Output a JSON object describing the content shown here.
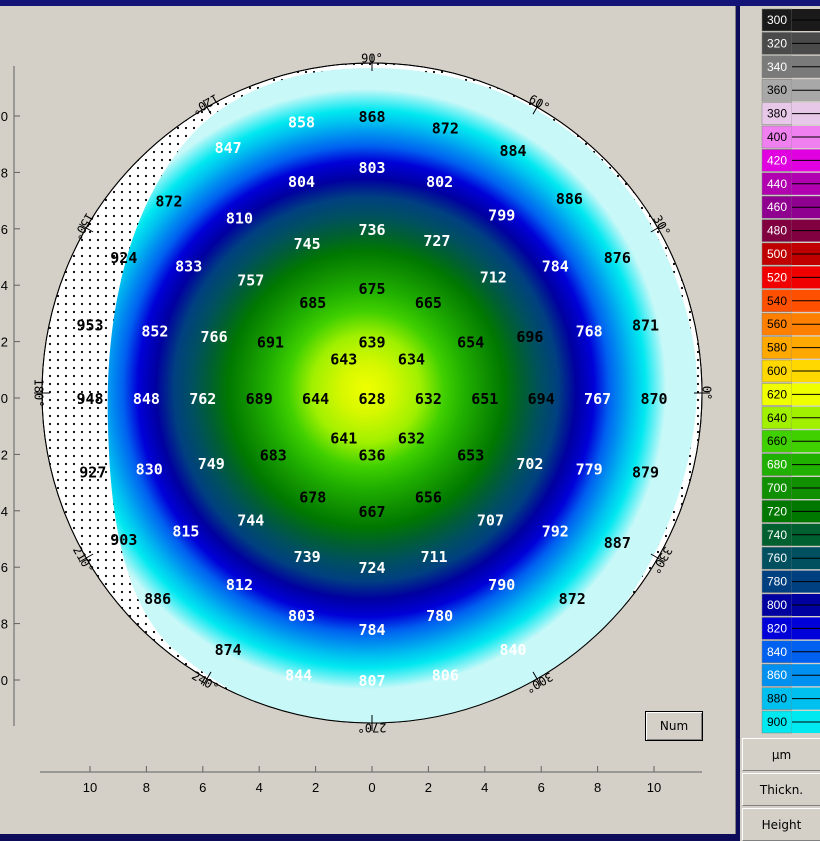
{
  "map": {
    "unit": "µm",
    "angle_labels": [
      {
        "deg": 0,
        "text": "0°"
      },
      {
        "deg": 30,
        "text": "30°"
      },
      {
        "deg": 60,
        "text": "60°"
      },
      {
        "deg": 90,
        "text": "90°"
      },
      {
        "deg": 120,
        "text": "120°"
      },
      {
        "deg": 150,
        "text": "150°"
      },
      {
        "deg": 180,
        "text": "180°"
      },
      {
        "deg": 210,
        "text": "210°"
      },
      {
        "deg": 240,
        "text": "240°"
      },
      {
        "deg": 270,
        "text": "270°"
      },
      {
        "deg": 300,
        "text": "300°"
      },
      {
        "deg": 330,
        "text": "330°"
      }
    ],
    "x_axis_ticks": [
      "10",
      "8",
      "6",
      "4",
      "2",
      "0",
      "2",
      "4",
      "6",
      "8",
      "10"
    ],
    "y_axis_ticks": [
      "10",
      "8",
      "6",
      "4",
      "2",
      "0",
      "2",
      "4",
      "6",
      "8",
      "10"
    ],
    "thickness_values": [
      {
        "x": -2.5,
        "y": 9.8,
        "v": "858"
      },
      {
        "x": 0,
        "y": 10.0,
        "v": "868"
      },
      {
        "x": 2.6,
        "y": 9.6,
        "v": "872"
      },
      {
        "x": -5.1,
        "y": 8.9,
        "v": "847"
      },
      {
        "x": 5.0,
        "y": 8.8,
        "v": "884"
      },
      {
        "x": -2.5,
        "y": 7.7,
        "v": "804"
      },
      {
        "x": 0,
        "y": 8.2,
        "v": "803"
      },
      {
        "x": 2.4,
        "y": 7.7,
        "v": "802"
      },
      {
        "x": -7.2,
        "y": 7.0,
        "v": "872"
      },
      {
        "x": 7.0,
        "y": 7.1,
        "v": "886"
      },
      {
        "x": -4.7,
        "y": 6.4,
        "v": "810"
      },
      {
        "x": 4.6,
        "y": 6.5,
        "v": "799"
      },
      {
        "x": -2.3,
        "y": 5.5,
        "v": "745"
      },
      {
        "x": 0,
        "y": 6.0,
        "v": "736"
      },
      {
        "x": 2.3,
        "y": 5.6,
        "v": "727"
      },
      {
        "x": -8.8,
        "y": 5.0,
        "v": "924"
      },
      {
        "x": -6.5,
        "y": 4.7,
        "v": "833"
      },
      {
        "x": 6.5,
        "y": 4.7,
        "v": "784"
      },
      {
        "x": 8.7,
        "y": 5.0,
        "v": "876"
      },
      {
        "x": -4.3,
        "y": 4.2,
        "v": "757"
      },
      {
        "x": 4.3,
        "y": 4.3,
        "v": "712"
      },
      {
        "x": -2.1,
        "y": 3.4,
        "v": "685"
      },
      {
        "x": 0,
        "y": 3.9,
        "v": "675"
      },
      {
        "x": 2.0,
        "y": 3.4,
        "v": "665"
      },
      {
        "x": -10.0,
        "y": 2.6,
        "v": "953"
      },
      {
        "x": -7.7,
        "y": 2.4,
        "v": "852"
      },
      {
        "x": -5.6,
        "y": 2.2,
        "v": "766"
      },
      {
        "x": 5.6,
        "y": 2.2,
        "v": "696"
      },
      {
        "x": 7.7,
        "y": 2.4,
        "v": "768"
      },
      {
        "x": 9.7,
        "y": 2.6,
        "v": "871"
      },
      {
        "x": -3.6,
        "y": 2.0,
        "v": "691"
      },
      {
        "x": 3.5,
        "y": 2.0,
        "v": "654"
      },
      {
        "x": 0,
        "y": 2.0,
        "v": "639"
      },
      {
        "x": -1.0,
        "y": 1.4,
        "v": "643"
      },
      {
        "x": 1.4,
        "y": 1.4,
        "v": "634"
      },
      {
        "x": -10.0,
        "y": 0,
        "v": "948"
      },
      {
        "x": -8.0,
        "y": 0,
        "v": "848"
      },
      {
        "x": -6.0,
        "y": 0,
        "v": "762"
      },
      {
        "x": -4.0,
        "y": 0,
        "v": "689"
      },
      {
        "x": -2.0,
        "y": 0,
        "v": "644"
      },
      {
        "x": 0,
        "y": 0,
        "v": "628"
      },
      {
        "x": 2.0,
        "y": 0,
        "v": "632"
      },
      {
        "x": 4.0,
        "y": 0,
        "v": "651"
      },
      {
        "x": 6.0,
        "y": 0,
        "v": "694"
      },
      {
        "x": 8.0,
        "y": 0,
        "v": "767"
      },
      {
        "x": 10.0,
        "y": 0,
        "v": "870"
      },
      {
        "x": -1.0,
        "y": -1.4,
        "v": "641"
      },
      {
        "x": 1.4,
        "y": -1.4,
        "v": "632"
      },
      {
        "x": 0,
        "y": -2.0,
        "v": "636"
      },
      {
        "x": -3.5,
        "y": -2.0,
        "v": "683"
      },
      {
        "x": 3.5,
        "y": -2.0,
        "v": "653"
      },
      {
        "x": -5.7,
        "y": -2.3,
        "v": "749"
      },
      {
        "x": 5.6,
        "y": -2.3,
        "v": "702"
      },
      {
        "x": -7.9,
        "y": -2.5,
        "v": "830"
      },
      {
        "x": 7.7,
        "y": -2.5,
        "v": "779"
      },
      {
        "x": -9.9,
        "y": -2.6,
        "v": "927"
      },
      {
        "x": 9.7,
        "y": -2.6,
        "v": "879"
      },
      {
        "x": -2.1,
        "y": -3.5,
        "v": "678"
      },
      {
        "x": 0,
        "y": -4.0,
        "v": "667"
      },
      {
        "x": 2.0,
        "y": -3.5,
        "v": "656"
      },
      {
        "x": -4.3,
        "y": -4.3,
        "v": "744"
      },
      {
        "x": 4.2,
        "y": -4.3,
        "v": "707"
      },
      {
        "x": -6.6,
        "y": -4.7,
        "v": "815"
      },
      {
        "x": 6.5,
        "y": -4.7,
        "v": "792"
      },
      {
        "x": -8.8,
        "y": -5.0,
        "v": "903"
      },
      {
        "x": 8.7,
        "y": -5.1,
        "v": "887"
      },
      {
        "x": -2.3,
        "y": -5.6,
        "v": "739"
      },
      {
        "x": 0,
        "y": -6.0,
        "v": "724"
      },
      {
        "x": 2.2,
        "y": -5.6,
        "v": "711"
      },
      {
        "x": -4.7,
        "y": -6.6,
        "v": "812"
      },
      {
        "x": 4.6,
        "y": -6.6,
        "v": "790"
      },
      {
        "x": -7.6,
        "y": -7.1,
        "v": "886"
      },
      {
        "x": 7.1,
        "y": -7.1,
        "v": "872"
      },
      {
        "x": -2.5,
        "y": -7.7,
        "v": "803"
      },
      {
        "x": 0,
        "y": -8.2,
        "v": "784"
      },
      {
        "x": 2.4,
        "y": -7.7,
        "v": "780"
      },
      {
        "x": -5.1,
        "y": -8.9,
        "v": "874"
      },
      {
        "x": 5.0,
        "y": -8.9,
        "v": "840"
      },
      {
        "x": -2.6,
        "y": -9.8,
        "v": "844"
      },
      {
        "x": 0,
        "y": -10.0,
        "v": "807"
      },
      {
        "x": 2.6,
        "y": -9.8,
        "v": "806"
      }
    ]
  },
  "color_scale": [
    {
      "label": "300",
      "color": "#1a1a1a"
    },
    {
      "label": "320",
      "color": "#4a4a4a"
    },
    {
      "label": "340",
      "color": "#7a7a7a"
    },
    {
      "label": "360",
      "color": "#a8a8a8"
    },
    {
      "label": "380",
      "color": "#e8c8e8"
    },
    {
      "label": "400",
      "color": "#f080f0"
    },
    {
      "label": "420",
      "color": "#e000e0"
    },
    {
      "label": "440",
      "color": "#b000b0"
    },
    {
      "label": "460",
      "color": "#900090"
    },
    {
      "label": "480",
      "color": "#800040"
    },
    {
      "label": "500",
      "color": "#c00000"
    },
    {
      "label": "520",
      "color": "#f00000"
    },
    {
      "label": "540",
      "color": "#ff5000"
    },
    {
      "label": "560",
      "color": "#ff8000"
    },
    {
      "label": "580",
      "color": "#ffa800"
    },
    {
      "label": "600",
      "color": "#ffd800"
    },
    {
      "label": "620",
      "color": "#f0ff00"
    },
    {
      "label": "640",
      "color": "#a0f000"
    },
    {
      "label": "660",
      "color": "#40d000"
    },
    {
      "label": "680",
      "color": "#20b000"
    },
    {
      "label": "700",
      "color": "#109000"
    },
    {
      "label": "720",
      "color": "#007800"
    },
    {
      "label": "740",
      "color": "#006030"
    },
    {
      "label": "760",
      "color": "#005060"
    },
    {
      "label": "780",
      "color": "#004080"
    },
    {
      "label": "800",
      "color": "#0000a0"
    },
    {
      "label": "820",
      "color": "#0000d8"
    },
    {
      "label": "840",
      "color": "#0060f0"
    },
    {
      "label": "860",
      "color": "#0090f0"
    },
    {
      "label": "880",
      "color": "#00c0f0"
    },
    {
      "label": "900",
      "color": "#00e8f0"
    }
  ],
  "buttons": {
    "num": "Num",
    "unit": "µm",
    "thickness": "Thickn.",
    "height": "Height"
  }
}
